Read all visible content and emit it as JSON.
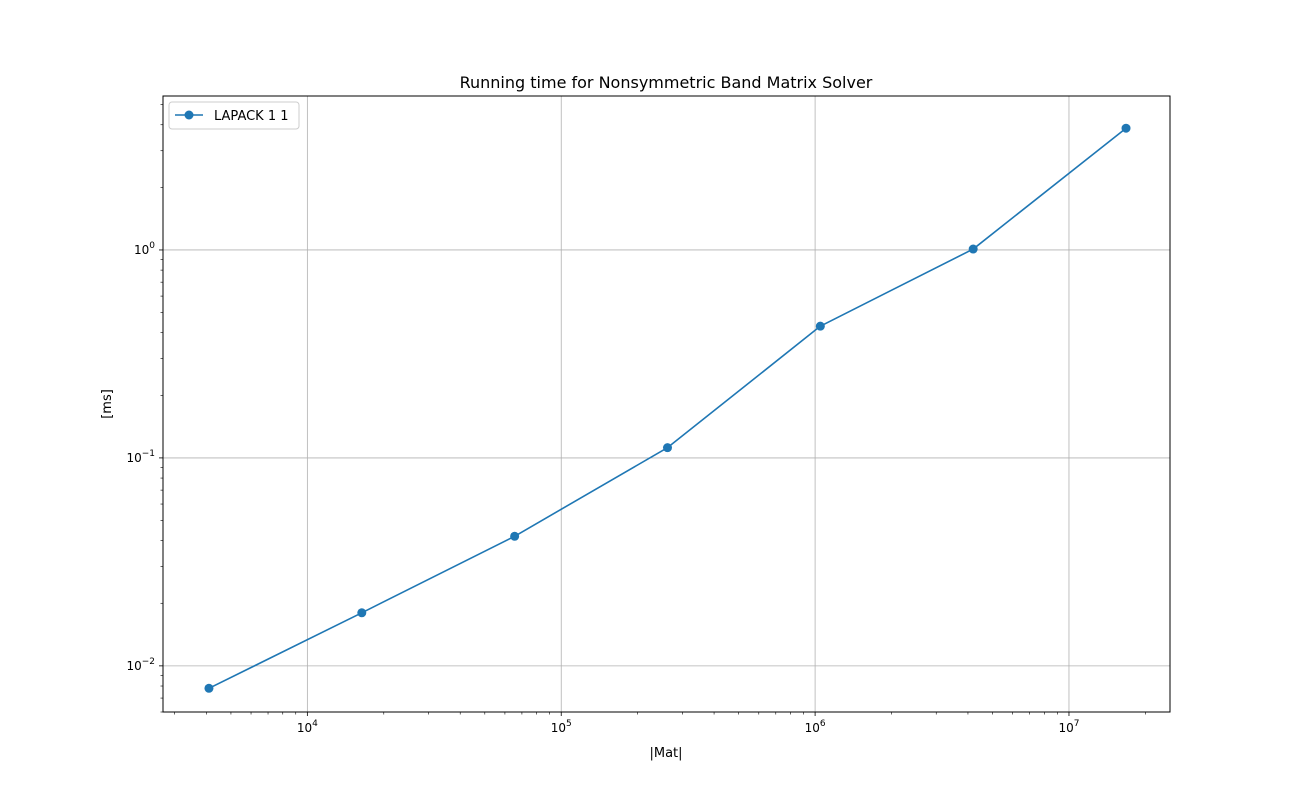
{
  "chart_data": {
    "type": "line",
    "title": "Running time for Nonsymmetric Band Matrix Solver",
    "xlabel": "|Mat|",
    "ylabel": "[ms]",
    "xscale": "log",
    "yscale": "log",
    "xlim": [
      2700,
      25000000
    ],
    "ylim": [
      0.006,
      5.5
    ],
    "grid": true,
    "legend_position": "top-left",
    "x_ticks": [
      {
        "base": "10",
        "exp": "4",
        "value": 10000
      },
      {
        "base": "10",
        "exp": "5",
        "value": 100000
      },
      {
        "base": "10",
        "exp": "6",
        "value": 1000000
      },
      {
        "base": "10",
        "exp": "7",
        "value": 10000000
      }
    ],
    "y_ticks": [
      {
        "base": "10",
        "exp": "−2",
        "value": 0.01
      },
      {
        "base": "10",
        "exp": "−1",
        "value": 0.1
      },
      {
        "base": "10",
        "exp": "0",
        "value": 1
      }
    ],
    "series": [
      {
        "name": "LAPACK 1 1",
        "color": "#1f77b4",
        "marker": "circle",
        "x": [
          4096,
          16384,
          65536,
          262144,
          1048576,
          4194304,
          16777216
        ],
        "y": [
          0.0078,
          0.018,
          0.042,
          0.112,
          0.43,
          1.01,
          3.85
        ]
      }
    ]
  }
}
